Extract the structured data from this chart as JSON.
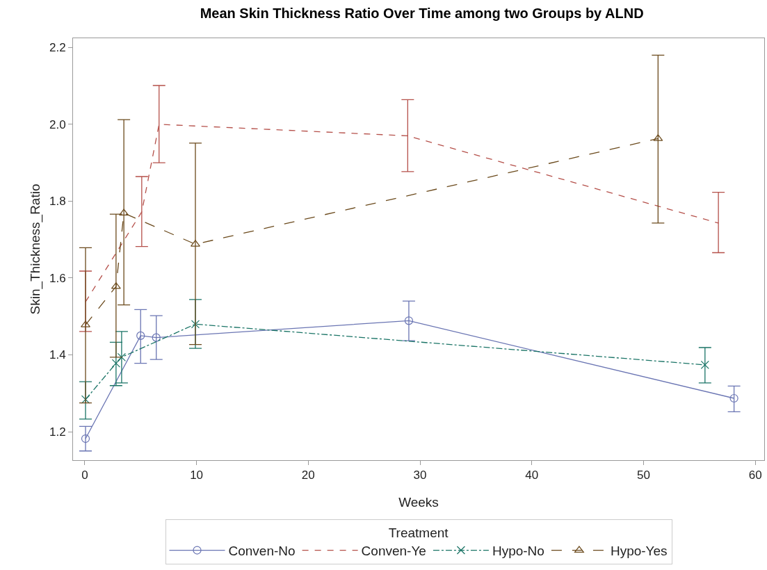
{
  "chart_data": {
    "type": "line",
    "title": "Mean Skin Thickness Ratio Over Time among two Groups by ALND",
    "xlabel": "Weeks",
    "ylabel": "Skin_Thickness_Ratio",
    "legend_title": "Treatment",
    "legend": "bottom",
    "grid": false,
    "xlim": [
      -1.05,
      60.8
    ],
    "xticks": [
      0,
      10,
      20,
      30,
      40,
      50,
      60
    ],
    "ylim": [
      1.126,
      2.224
    ],
    "yticks": [
      1.2,
      1.4,
      1.6,
      1.8,
      {
        "value": 2,
        "label": "2.0"
      },
      2.2
    ],
    "series": [
      {
        "name": "Conven-No",
        "color": "#6a75b3",
        "marker": "circle",
        "line_style": "solid",
        "x": [
          0.07,
          5.0,
          6.4,
          29.0,
          58.1
        ],
        "values": [
          1.182,
          1.45,
          1.445,
          1.489,
          1.287
        ],
        "errors": [
          [
            1.15,
            1.214
          ],
          [
            1.378,
            1.518
          ],
          [
            1.388,
            1.502
          ],
          [
            1.437,
            1.54
          ],
          [
            1.252,
            1.319
          ]
        ]
      },
      {
        "name": "Conven-Ye",
        "color": "#b5504a",
        "marker": "none",
        "line_style": "dashed",
        "x": [
          0.07,
          5.1,
          6.65,
          28.9,
          56.7
        ],
        "values": [
          1.538,
          1.772,
          2.0,
          1.97,
          1.743
        ],
        "errors": [
          [
            1.461,
            1.618
          ],
          [
            1.682,
            1.864
          ],
          [
            1.9,
            2.101
          ],
          [
            1.877,
            2.064
          ],
          [
            1.666,
            1.823
          ]
        ]
      },
      {
        "name": "Hypo-No",
        "color": "#1a7466",
        "marker": "cross",
        "line_style": "dashdot",
        "x": [
          0.07,
          2.8,
          3.3,
          9.9,
          55.5
        ],
        "values": [
          1.284,
          1.378,
          1.394,
          1.48,
          1.374
        ],
        "errors": [
          [
            1.233,
            1.33
          ],
          [
            1.32,
            1.433
          ],
          [
            1.327,
            1.461
          ],
          [
            1.417,
            1.544
          ],
          [
            1.327,
            1.419
          ]
        ]
      },
      {
        "name": "Hypo-Yes",
        "color": "#6b4a1c",
        "marker": "triangle",
        "line_style": "longdash",
        "x": [
          0.07,
          2.8,
          3.5,
          9.9,
          51.3
        ],
        "values": [
          1.478,
          1.578,
          1.769,
          1.688,
          1.963
        ],
        "errors": [
          [
            1.275,
            1.679
          ],
          [
            1.394,
            1.766
          ],
          [
            1.53,
            2.012
          ],
          [
            1.427,
            1.951
          ],
          [
            1.743,
            2.18
          ]
        ]
      }
    ]
  }
}
